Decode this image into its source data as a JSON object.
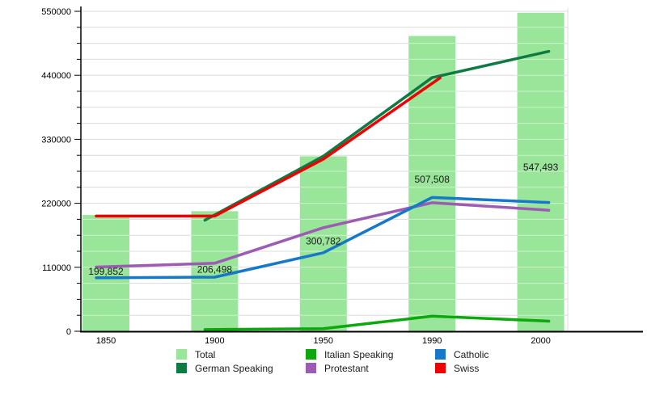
{
  "chart_data": {
    "type": "bar",
    "overlay_type": "line",
    "title": "",
    "xlabel": "",
    "ylabel": "",
    "categories": [
      "1850",
      "1900",
      "1950",
      "1990",
      "2000"
    ],
    "bar_series": {
      "name": "Total",
      "values": [
        199852,
        206498,
        300782,
        507508,
        547493
      ],
      "labels": [
        "199,852",
        "206,498",
        "300,782",
        "507,508",
        "547,493"
      ]
    },
    "line_series": [
      {
        "name": "German Speaking",
        "values": [
          null,
          200000,
          301000,
          436000,
          478000
        ]
      },
      {
        "name": "Italian Speaking",
        "values": [
          null,
          3000,
          4500,
          26000,
          18000
        ]
      },
      {
        "name": "Catholic",
        "values": [
          92000,
          93000,
          135000,
          230000,
          222000
        ]
      },
      {
        "name": "Protestant",
        "values": [
          111000,
          117000,
          178000,
          221000,
          209000
        ]
      },
      {
        "name": "Swiss",
        "values": [
          198000,
          198000,
          296000,
          426000,
          null
        ]
      }
    ],
    "colors": {
      "Total": "#99E599",
      "German Speaking": "#0E7A44",
      "Italian Speaking": "#0CA80C",
      "Catholic": "#1678C8",
      "Protestant": "#9D5CB3",
      "Swiss": "#F00000"
    },
    "ylim": [
      0,
      550000
    ],
    "y_major_step": 110000,
    "y_minor_step": 27500,
    "y_tick_labels": [
      "0",
      "110000",
      "220000",
      "330000",
      "440000",
      "550000"
    ],
    "x_tick_labels": [
      "1850",
      "1900",
      "1950",
      "1990",
      "2000"
    ],
    "grid": "horizontal light-gray lines every 27500, visible through bars",
    "grid_color": "#DCDCDC",
    "axis_color": "#000000",
    "label_color": "#1A1A1A",
    "legend_position": "bottom",
    "legend_rows": [
      [
        "Total",
        "Italian Speaking",
        "Catholic"
      ],
      [
        "German Speaking",
        "Protestant",
        "Swiss"
      ]
    ]
  }
}
